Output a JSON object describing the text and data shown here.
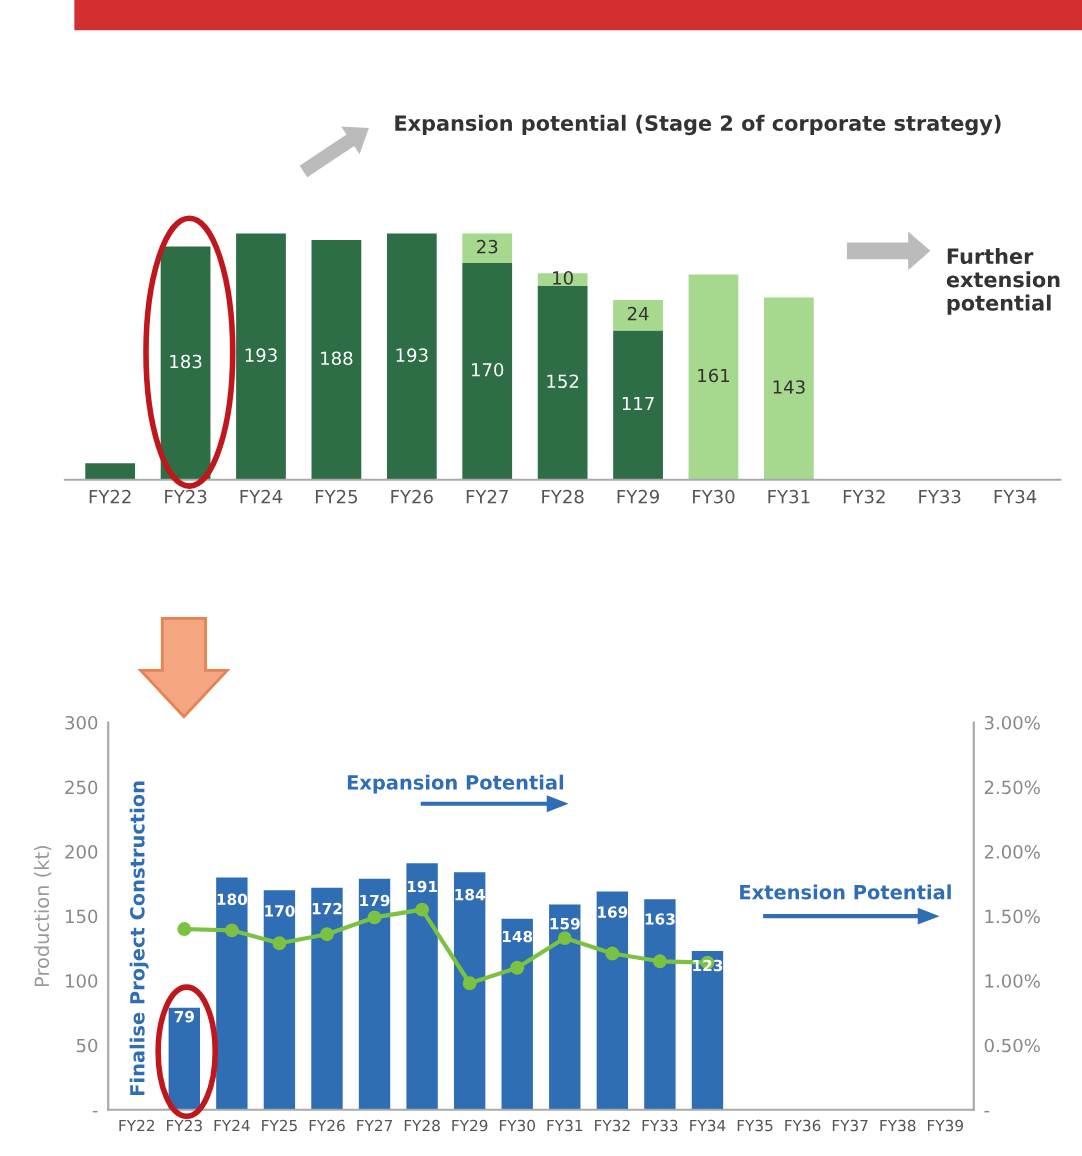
{
  "chart_data": [
    {
      "type": "bar",
      "stacked": true,
      "tick_labels": "x",
      "categories": [
        "FY22",
        "FY23",
        "FY24",
        "FY25",
        "FY26",
        "FY27",
        "FY28",
        "FY29",
        "FY30",
        "FY31",
        "FY32",
        "FY33",
        "FY34"
      ],
      "series": [
        {
          "color": "#2e6e47",
          "values": [
            13,
            183,
            193,
            188,
            193,
            170,
            152,
            117,
            null,
            null,
            null,
            null,
            null
          ],
          "value_labels": [
            null,
            "183",
            "193",
            "188",
            "193",
            "170",
            "152",
            "117",
            null,
            null,
            null,
            null,
            null
          ]
        },
        {
          "color": "#a6d88e",
          "values": [
            null,
            null,
            null,
            null,
            null,
            23,
            10,
            24,
            161,
            143,
            null,
            null,
            null
          ],
          "value_labels": [
            null,
            null,
            null,
            null,
            null,
            "23",
            "10",
            "24",
            "161",
            "143",
            null,
            null,
            null
          ]
        }
      ],
      "annotations": [
        "Expansion potential (Stage 2 of corporate strategy)",
        "Further extension potential"
      ]
    },
    {
      "type": "bar",
      "categories": [
        "FY22",
        "FY23",
        "FY24",
        "FY25",
        "FY26",
        "FY27",
        "FY28",
        "FY29",
        "FY30",
        "FY31",
        "FY32",
        "FY33",
        "FY34",
        "FY35",
        "FY36",
        "FY37",
        "FY38",
        "FY39"
      ],
      "ylabel": "Production (kt)",
      "ylim": [
        0,
        300
      ],
      "yticks": [
        {
          "value": 0,
          "label": "-"
        },
        50,
        100,
        150,
        200,
        250,
        300
      ],
      "y2lim": [
        0,
        3
      ],
      "y2ticks": [
        {
          "value": 0,
          "label": "-"
        },
        {
          "value": 0.5,
          "label": "0.50%"
        },
        {
          "value": 1,
          "label": "1.00%"
        },
        {
          "value": 1.5,
          "label": "1.50%"
        },
        {
          "value": 2,
          "label": "2.00%"
        },
        {
          "value": 2.5,
          "label": "2.50%"
        },
        {
          "value": 3,
          "label": "3.00%"
        }
      ],
      "series": [
        {
          "type": "bar",
          "color": "#2f6db5",
          "values": [
            null,
            79,
            180,
            170,
            172,
            179,
            191,
            184,
            148,
            159,
            169,
            163,
            123,
            null,
            null,
            null,
            null,
            null
          ],
          "value_labels": [
            null,
            "79",
            "180",
            "170",
            "172",
            "179",
            "191",
            "184",
            "148",
            "159",
            "169",
            "163",
            "123",
            null,
            null,
            null,
            null,
            null
          ]
        },
        {
          "type": "line",
          "axis": "y2",
          "color": "#7cc242",
          "marker": "circle",
          "values": [
            null,
            1.4,
            1.39,
            1.29,
            1.36,
            1.49,
            1.55,
            0.98,
            1.1,
            1.33,
            1.21,
            1.15,
            1.14,
            null,
            null,
            null,
            null,
            null
          ]
        }
      ],
      "annotations": [
        "Expansion Potential",
        "Extension Potential",
        "Finalise Project Construction"
      ]
    }
  ]
}
